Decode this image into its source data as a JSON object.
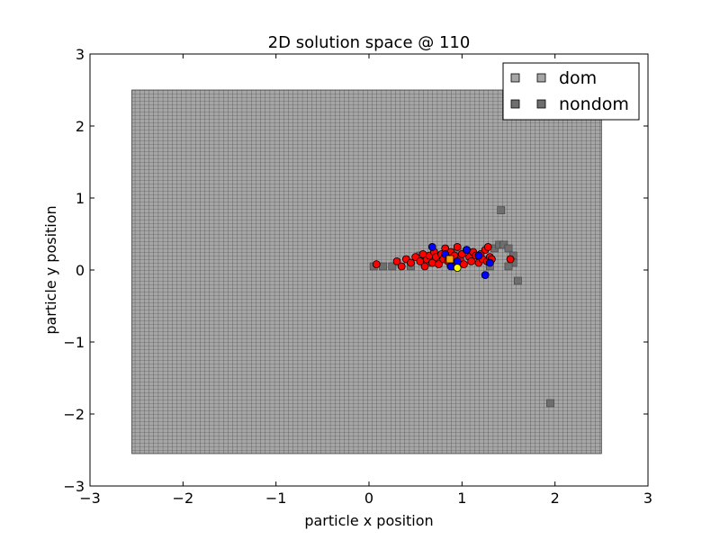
{
  "chart_data": {
    "type": "scatter",
    "title": "2D solution space @ 110",
    "xlabel": "particle x position",
    "ylabel": "particle y position",
    "xlim": [
      -3,
      3
    ],
    "ylim": [
      -3,
      3
    ],
    "xticks": [
      "−3",
      "−2",
      "−1",
      "0",
      "1",
      "2",
      "3"
    ],
    "yticks": [
      "−3",
      "−2",
      "−1",
      "0",
      "1",
      "2",
      "3"
    ],
    "grid": false,
    "legend_position": "top-right",
    "legend": [
      {
        "label": "dom",
        "color": "#a6a6a6",
        "marker": "square"
      },
      {
        "label": "nondom",
        "color": "#6e6e6e",
        "marker": "square"
      }
    ],
    "dom_region": {
      "x_range": [
        -2.55,
        2.5
      ],
      "y_range": [
        -2.55,
        2.5
      ],
      "cell_size": 0.05,
      "color": "#a6a6a6"
    },
    "nondom_cells": [
      [
        0.05,
        0.05
      ],
      [
        0.15,
        0.05
      ],
      [
        0.25,
        0.05
      ],
      [
        0.45,
        0.05
      ],
      [
        0.55,
        0.2
      ],
      [
        0.65,
        0.1
      ],
      [
        0.95,
        0.25
      ],
      [
        1.3,
        0.05
      ],
      [
        1.35,
        0.3
      ],
      [
        1.4,
        0.35
      ],
      [
        1.45,
        0.35
      ],
      [
        1.5,
        0.3
      ],
      [
        1.55,
        0.2
      ],
      [
        1.55,
        0.1
      ],
      [
        1.5,
        0.05
      ],
      [
        1.6,
        -0.15
      ],
      [
        1.42,
        0.83
      ],
      [
        1.95,
        -1.85
      ]
    ],
    "nondom_color": "#6e6e6e",
    "series": [
      {
        "color": "#ff0000",
        "points": [
          [
            0.08,
            0.08
          ],
          [
            0.3,
            0.12
          ],
          [
            0.35,
            0.05
          ],
          [
            0.4,
            0.15
          ],
          [
            0.45,
            0.1
          ],
          [
            0.5,
            0.18
          ],
          [
            0.55,
            0.12
          ],
          [
            0.6,
            0.05
          ],
          [
            0.62,
            0.15
          ],
          [
            0.65,
            0.2
          ],
          [
            0.68,
            0.1
          ],
          [
            0.7,
            0.25
          ],
          [
            0.72,
            0.18
          ],
          [
            0.75,
            0.08
          ],
          [
            0.78,
            0.22
          ],
          [
            0.8,
            0.15
          ],
          [
            0.82,
            0.3
          ],
          [
            0.85,
            0.12
          ],
          [
            0.88,
            0.25
          ],
          [
            0.9,
            0.05
          ],
          [
            0.92,
            0.2
          ],
          [
            0.95,
            0.32
          ],
          [
            0.98,
            0.15
          ],
          [
            1.0,
            0.22
          ],
          [
            1.02,
            0.08
          ],
          [
            1.05,
            0.28
          ],
          [
            1.08,
            0.18
          ],
          [
            1.1,
            0.12
          ],
          [
            1.12,
            0.25
          ],
          [
            1.15,
            0.2
          ],
          [
            1.18,
            0.1
          ],
          [
            1.2,
            0.22
          ],
          [
            1.22,
            0.15
          ],
          [
            1.25,
            0.28
          ],
          [
            1.27,
            0.12
          ],
          [
            1.28,
            0.32
          ],
          [
            1.3,
            0.18
          ],
          [
            1.32,
            0.15
          ],
          [
            1.52,
            0.15
          ],
          [
            0.58,
            0.22
          ]
        ]
      },
      {
        "color": "#0000ff",
        "points": [
          [
            0.68,
            0.32
          ],
          [
            0.82,
            0.22
          ],
          [
            0.88,
            0.05
          ],
          [
            0.95,
            0.12
          ],
          [
            1.05,
            0.28
          ],
          [
            1.18,
            0.2
          ],
          [
            1.25,
            -0.07
          ],
          [
            1.3,
            0.1
          ]
        ]
      },
      {
        "color": "#ffff00",
        "points": [
          [
            0.95,
            0.03
          ]
        ]
      },
      {
        "color": "#ffa500",
        "marker": "square",
        "points": [
          [
            0.87,
            0.15
          ]
        ]
      }
    ]
  }
}
